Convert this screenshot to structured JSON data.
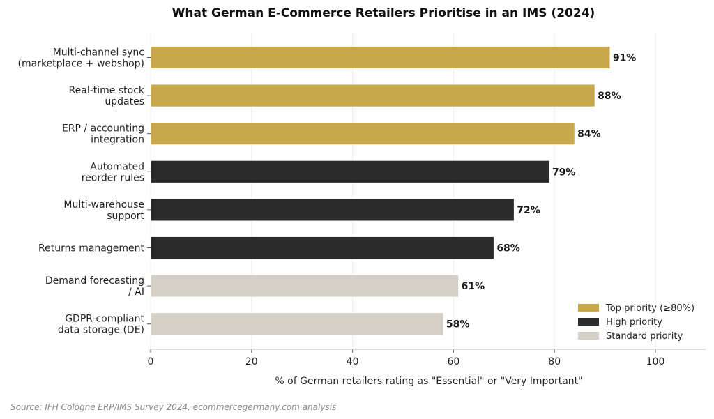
{
  "colors": {
    "top": "#c9a84c",
    "high": "#2b2b2b",
    "standard": "#d4d0c5",
    "grid": "#f0ede4",
    "axis": "#cccccc"
  },
  "chart_data": {
    "type": "bar",
    "orientation": "horizontal",
    "title": "What German E-Commerce Retailers Prioritise in an IMS (2024)",
    "xlabel": "% of German retailers rating as \"Essential\" or \"Very Important\"",
    "ylabel": "",
    "xlim": [
      0,
      110
    ],
    "xticks": [
      0,
      20,
      40,
      60,
      80,
      100
    ],
    "grid": "vertical",
    "legend_position": "bottom-right",
    "categories": [
      [
        "Multi-channel sync",
        "(marketplace + webshop)"
      ],
      [
        "Real-time stock",
        "updates"
      ],
      [
        "ERP / accounting",
        "integration"
      ],
      [
        "Automated",
        "reorder rules"
      ],
      [
        "Multi-warehouse",
        "support"
      ],
      [
        "Returns management"
      ],
      [
        "Demand forecasting",
        "/ AI"
      ],
      [
        "GDPR-compliant",
        "data storage (DE)"
      ]
    ],
    "values": [
      91,
      88,
      84,
      79,
      72,
      68,
      61,
      58
    ],
    "value_labels": [
      "91%",
      "88%",
      "84%",
      "79%",
      "72%",
      "68%",
      "61%",
      "58%"
    ],
    "groups": [
      "top",
      "top",
      "top",
      "high",
      "high",
      "high",
      "standard",
      "standard"
    ],
    "legend": [
      {
        "key": "top",
        "label": "Top priority (≥80%)"
      },
      {
        "key": "high",
        "label": "High priority"
      },
      {
        "key": "standard",
        "label": "Standard priority"
      }
    ]
  },
  "source": "Source: IFH Cologne ERP/IMS Survey 2024, ecommercegermany.com analysis"
}
